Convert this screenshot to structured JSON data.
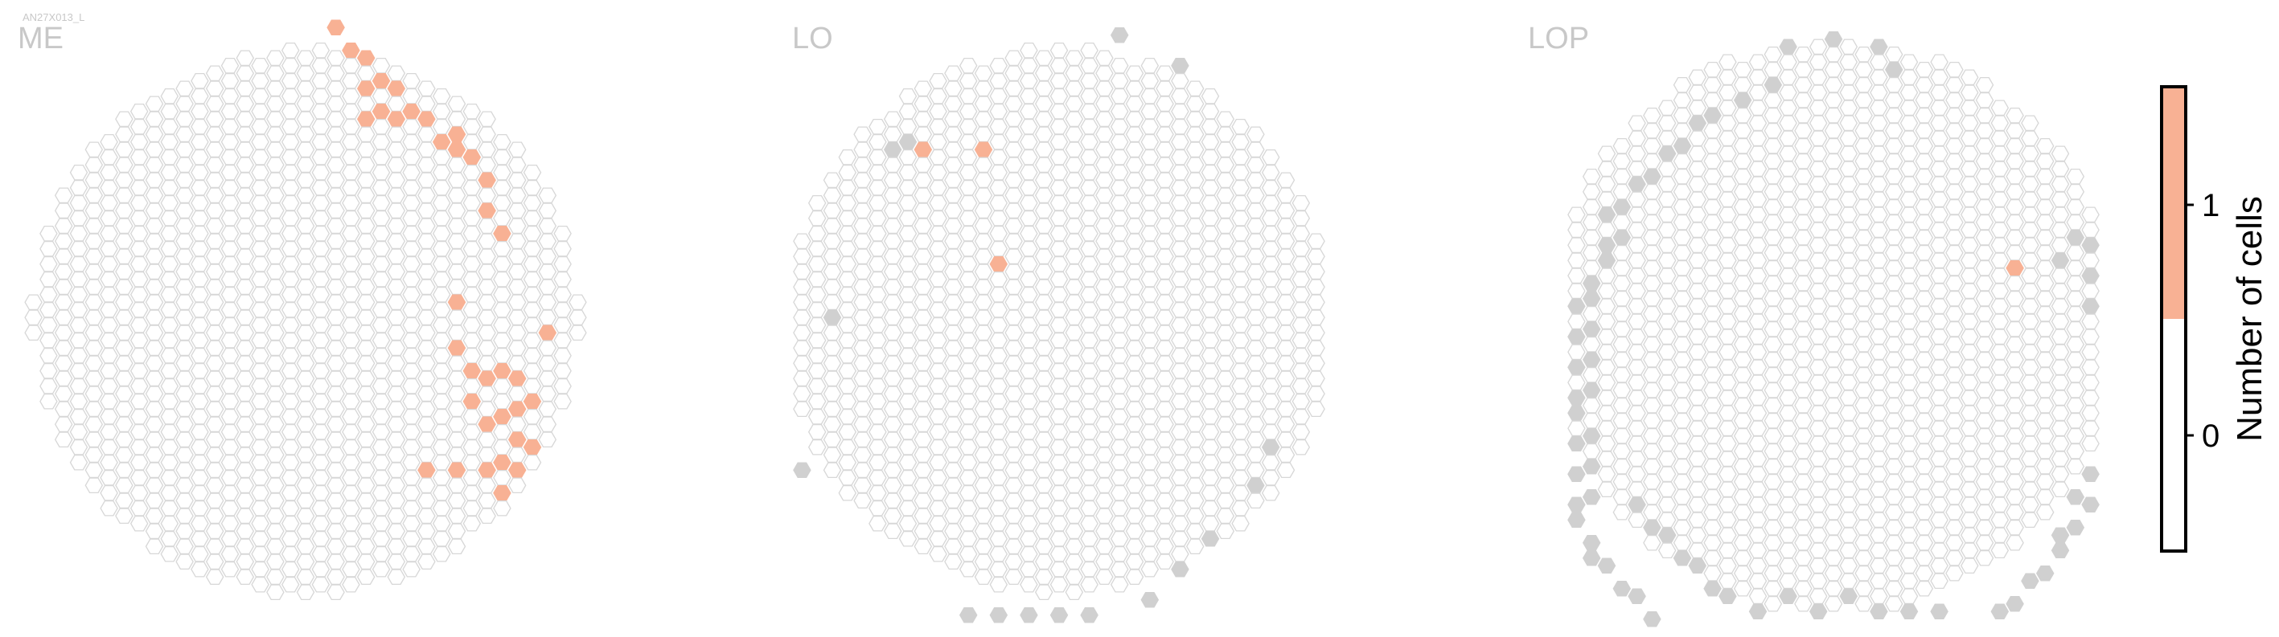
{
  "watermark": "AN27X013_L",
  "chart_data": {
    "type": "heatmap",
    "title": "",
    "panels": [
      {
        "name": "ME",
        "layout": {
          "rows": 39,
          "cols": 37
        },
        "colored": [
          [
            0,
            20
          ],
          [
            1,
            21
          ],
          [
            2,
            22
          ],
          [
            3,
            23
          ],
          [
            4,
            24
          ],
          [
            4,
            22
          ],
          [
            5,
            25
          ],
          [
            5,
            23
          ],
          [
            6,
            26
          ],
          [
            6,
            22
          ],
          [
            6,
            24
          ],
          [
            7,
            27
          ],
          [
            7,
            28
          ],
          [
            8,
            29
          ],
          [
            8,
            28
          ],
          [
            10,
            30
          ],
          [
            12,
            30
          ],
          [
            13,
            31
          ],
          [
            18,
            28
          ],
          [
            20,
            34
          ],
          [
            21,
            28
          ],
          [
            22,
            29
          ],
          [
            22,
            31
          ],
          [
            23,
            32
          ],
          [
            23,
            30
          ],
          [
            24,
            33
          ],
          [
            24,
            29
          ],
          [
            25,
            32
          ],
          [
            25,
            31
          ],
          [
            26,
            30
          ],
          [
            27,
            32
          ],
          [
            27,
            33
          ],
          [
            28,
            31
          ],
          [
            29,
            26
          ],
          [
            29,
            28
          ],
          [
            29,
            30
          ],
          [
            30,
            31
          ],
          [
            29,
            32
          ]
        ],
        "gray": []
      },
      {
        "name": "LO",
        "layout": {
          "rows": 39,
          "cols": 35
        },
        "colored": [
          [
            8,
            8
          ],
          [
            8,
            12
          ],
          [
            15,
            13
          ]
        ],
        "gray": [
          [
            0,
            21
          ],
          [
            2,
            25
          ],
          [
            8,
            6
          ],
          [
            7,
            7
          ],
          [
            19,
            2
          ],
          [
            29,
            0
          ],
          [
            38,
            11
          ],
          [
            38,
            13
          ],
          [
            38,
            15
          ],
          [
            38,
            17
          ],
          [
            38,
            19
          ],
          [
            37,
            23
          ],
          [
            35,
            25
          ],
          [
            33,
            27
          ],
          [
            30,
            30
          ],
          [
            27,
            31
          ]
        ],
        "scale": 1.0
      },
      {
        "name": "LOP",
        "layout": {
          "rows": 39,
          "cols": 35
        },
        "colored": [
          [
            15,
            29
          ]
        ],
        "gray": [
          [
            0,
            17
          ],
          [
            1,
            20
          ],
          [
            1,
            14
          ],
          [
            2,
            21
          ],
          [
            3,
            13
          ],
          [
            4,
            11
          ],
          [
            5,
            9
          ],
          [
            6,
            8
          ],
          [
            7,
            7
          ],
          [
            8,
            6
          ],
          [
            9,
            5
          ],
          [
            10,
            4
          ],
          [
            11,
            3
          ],
          [
            12,
            2
          ],
          [
            13,
            3
          ],
          [
            14,
            2
          ],
          [
            15,
            2
          ],
          [
            16,
            1
          ],
          [
            17,
            1
          ],
          [
            18,
            0
          ],
          [
            19,
            1
          ],
          [
            20,
            0
          ],
          [
            21,
            1
          ],
          [
            22,
            0
          ],
          [
            23,
            1
          ],
          [
            24,
            0
          ],
          [
            25,
            0
          ],
          [
            26,
            1
          ],
          [
            27,
            0
          ],
          [
            28,
            1
          ],
          [
            29,
            0
          ],
          [
            30,
            1
          ],
          [
            31,
            0
          ],
          [
            32,
            0
          ],
          [
            33,
            1
          ],
          [
            34,
            1
          ],
          [
            35,
            2
          ],
          [
            36,
            3
          ],
          [
            37,
            4
          ],
          [
            38,
            5
          ],
          [
            13,
            33
          ],
          [
            14,
            34
          ],
          [
            15,
            32
          ],
          [
            16,
            34
          ],
          [
            17,
            35
          ],
          [
            18,
            34
          ],
          [
            19,
            36
          ],
          [
            20,
            35
          ],
          [
            21,
            37
          ],
          [
            22,
            36
          ],
          [
            23,
            36
          ],
          [
            24,
            37
          ],
          [
            25,
            36
          ],
          [
            26,
            37
          ],
          [
            27,
            36
          ],
          [
            29,
            34
          ],
          [
            30,
            33
          ],
          [
            31,
            34
          ],
          [
            32,
            33
          ],
          [
            33,
            32
          ],
          [
            34,
            32
          ],
          [
            35,
            31
          ],
          [
            36,
            30
          ],
          [
            37,
            29
          ],
          [
            38,
            28
          ],
          [
            38,
            24
          ],
          [
            38,
            22
          ],
          [
            38,
            20
          ],
          [
            37,
            18
          ],
          [
            38,
            16
          ],
          [
            37,
            14
          ],
          [
            38,
            12
          ],
          [
            37,
            10
          ],
          [
            36,
            9
          ],
          [
            35,
            8
          ],
          [
            34,
            7
          ],
          [
            33,
            6
          ],
          [
            32,
            5
          ],
          [
            31,
            4
          ]
        ]
      }
    ],
    "colorbar": {
      "label": "Number of cells",
      "ticks": [
        "0",
        "1"
      ],
      "colors": {
        "zero": "#ffffff",
        "one": "#f8b194"
      }
    },
    "colors": {
      "cell_stroke": "#d7d7d7",
      "colored_fill": "#f8b194",
      "gray_fill": "#d0d0d0",
      "title": "#c8c8c8"
    }
  }
}
